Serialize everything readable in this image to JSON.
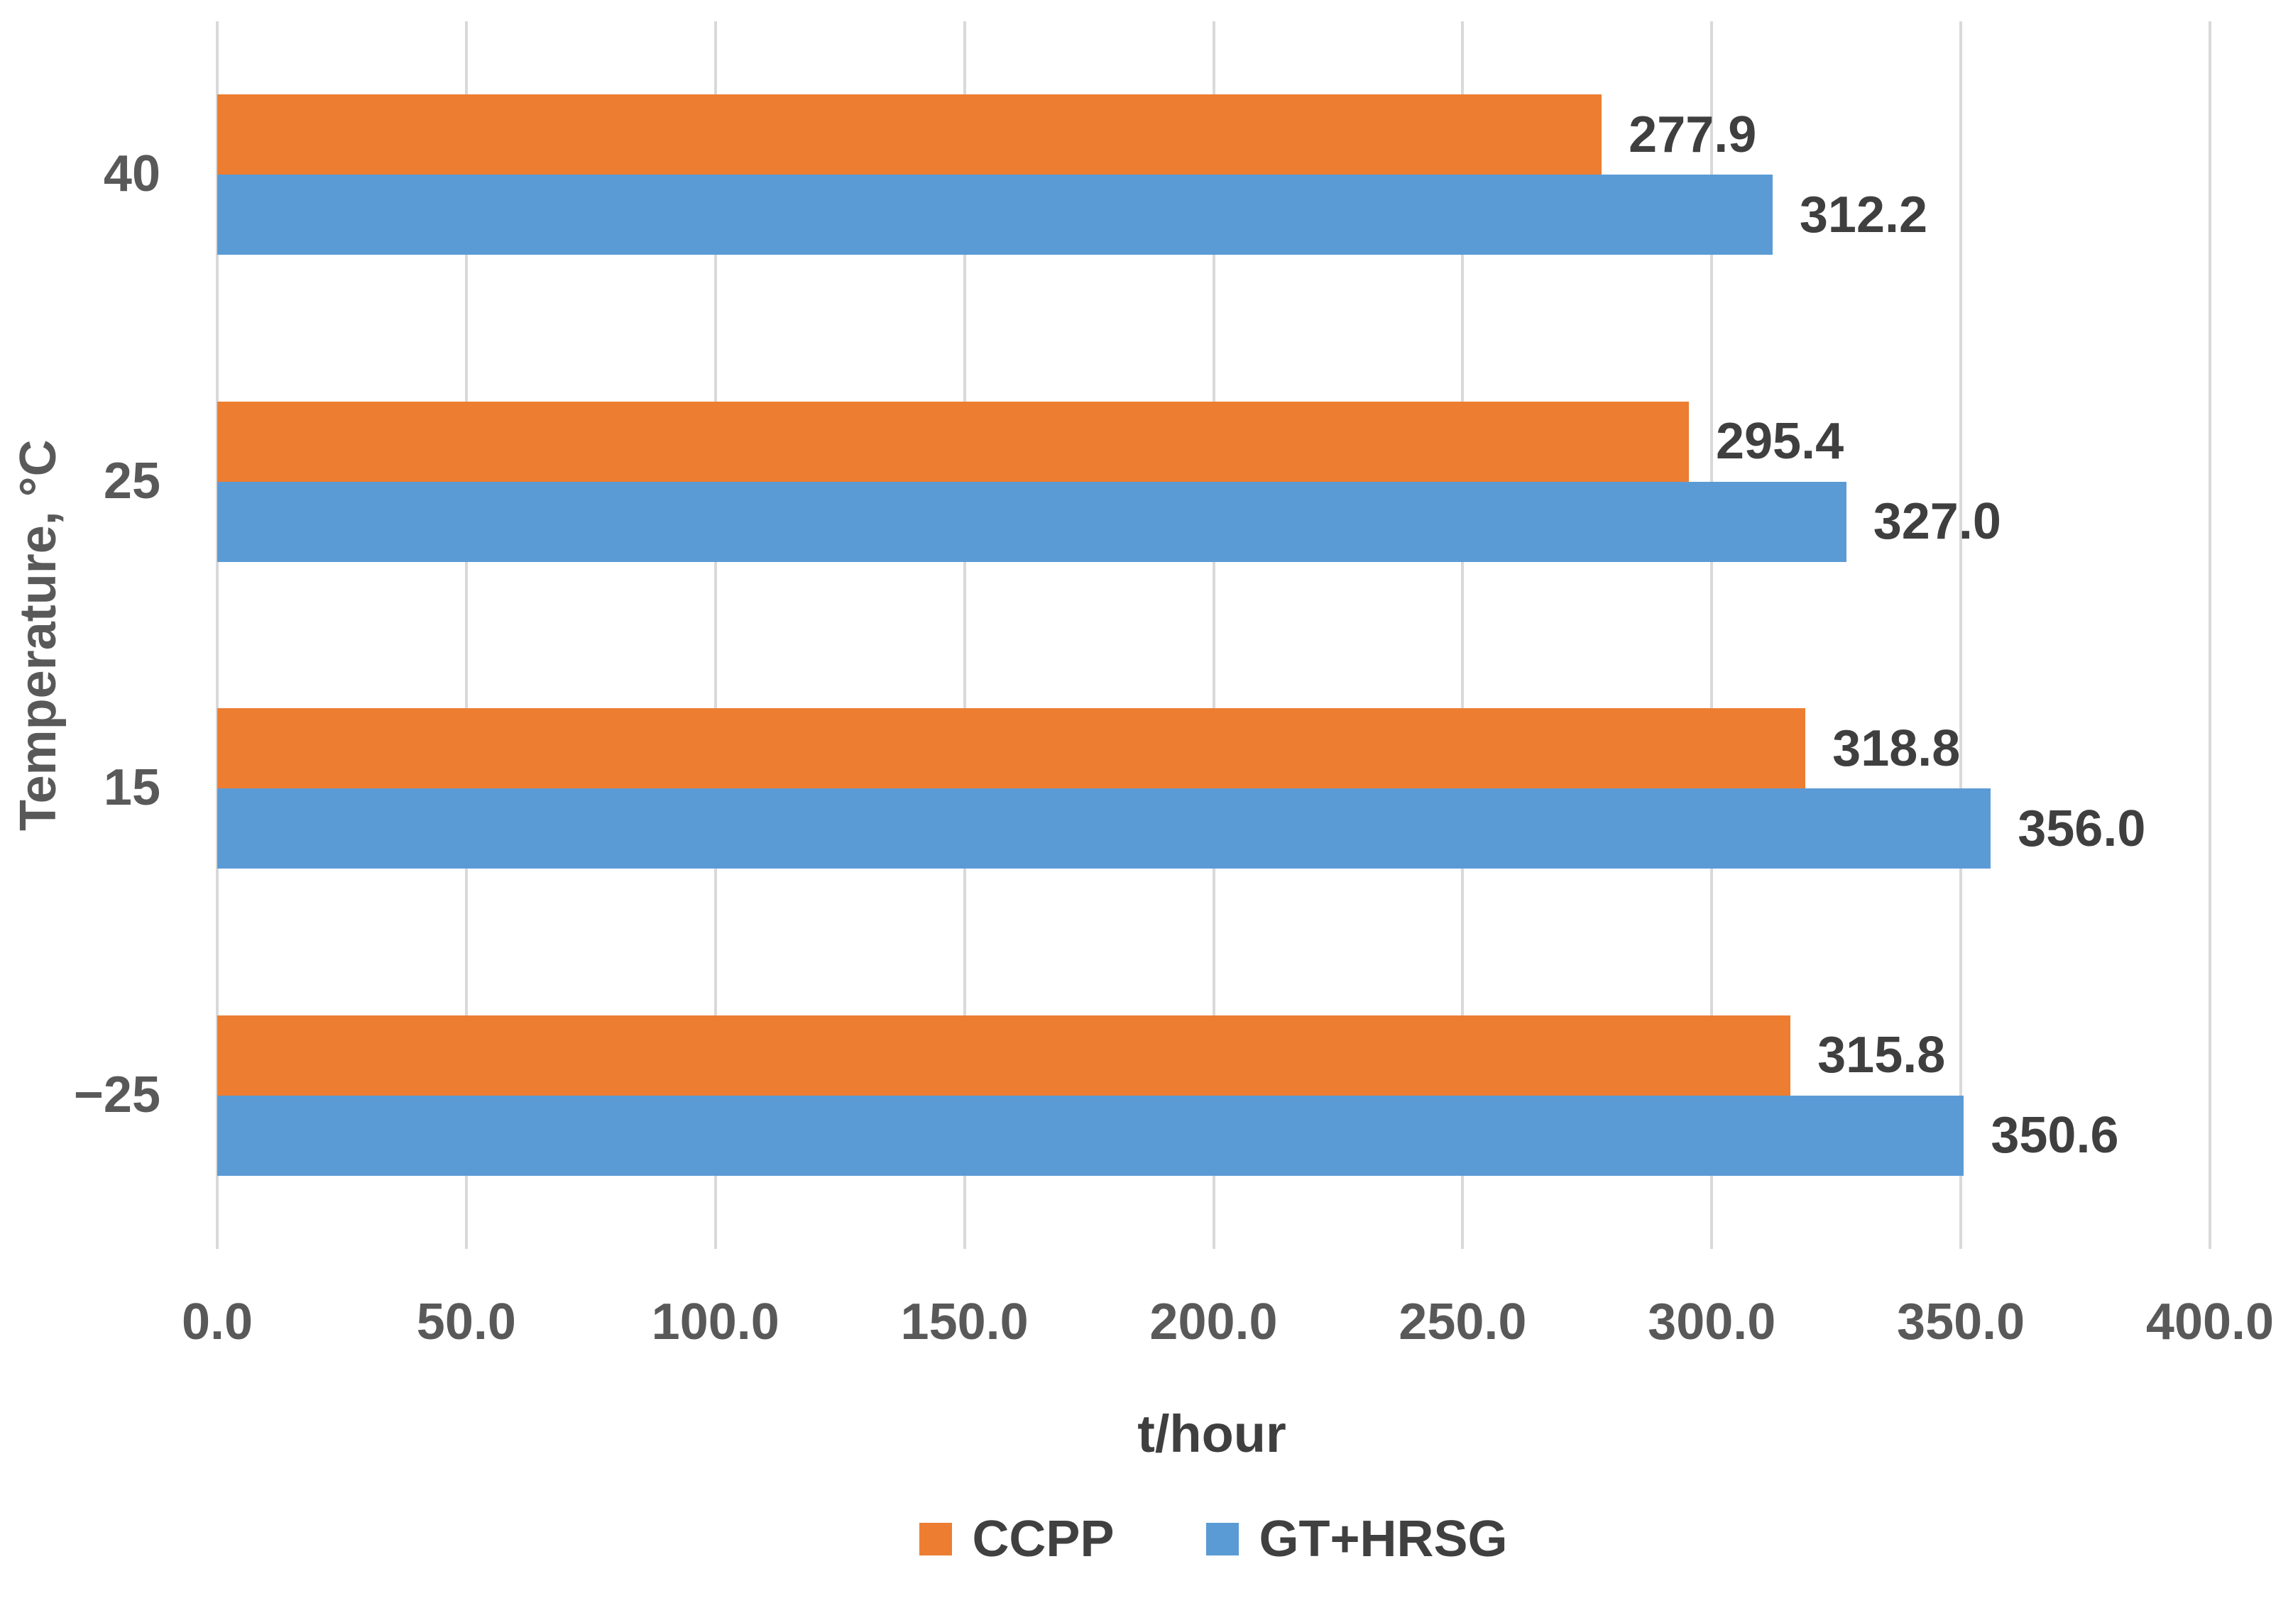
{
  "chart_data": {
    "type": "bar",
    "orientation": "horizontal",
    "title": "",
    "xlabel": "t/hour",
    "ylabel": "Temperature, °C",
    "categories": [
      "40",
      "25",
      "15",
      "−25"
    ],
    "series": [
      {
        "name": "CCPP",
        "color": "#ED7D31",
        "values": [
          277.9,
          295.4,
          318.8,
          315.8
        ],
        "value_labels": [
          "277.9",
          "295.4",
          "318.8",
          "315.8"
        ]
      },
      {
        "name": "GT+HRSG",
        "color": "#5B9BD5",
        "values": [
          312.2,
          327.0,
          356.0,
          350.6
        ],
        "value_labels": [
          "312.2",
          "327.0",
          "356.0",
          "350.6"
        ]
      }
    ],
    "xlim": [
      0,
      400
    ],
    "xticks": {
      "values": [
        0,
        50,
        100,
        150,
        200,
        250,
        300,
        350,
        400
      ],
      "labels": [
        "0.0",
        "50.0",
        "100.0",
        "150.0",
        "200.0",
        "250.0",
        "300.0",
        "350.0",
        "400.0"
      ]
    },
    "grid": "vertical-only",
    "legend_position": "bottom",
    "colors": {
      "gridline": "#D9D9D9",
      "axis_text": "#595959",
      "data_label_text": "#3F3F3F",
      "legend_text": "#404040",
      "background": "#FFFFFF"
    }
  },
  "legend": {
    "items": [
      {
        "label": "CCPP",
        "color": "#ED7D31"
      },
      {
        "label": "GT+HRSG",
        "color": "#5B9BD5"
      }
    ]
  }
}
